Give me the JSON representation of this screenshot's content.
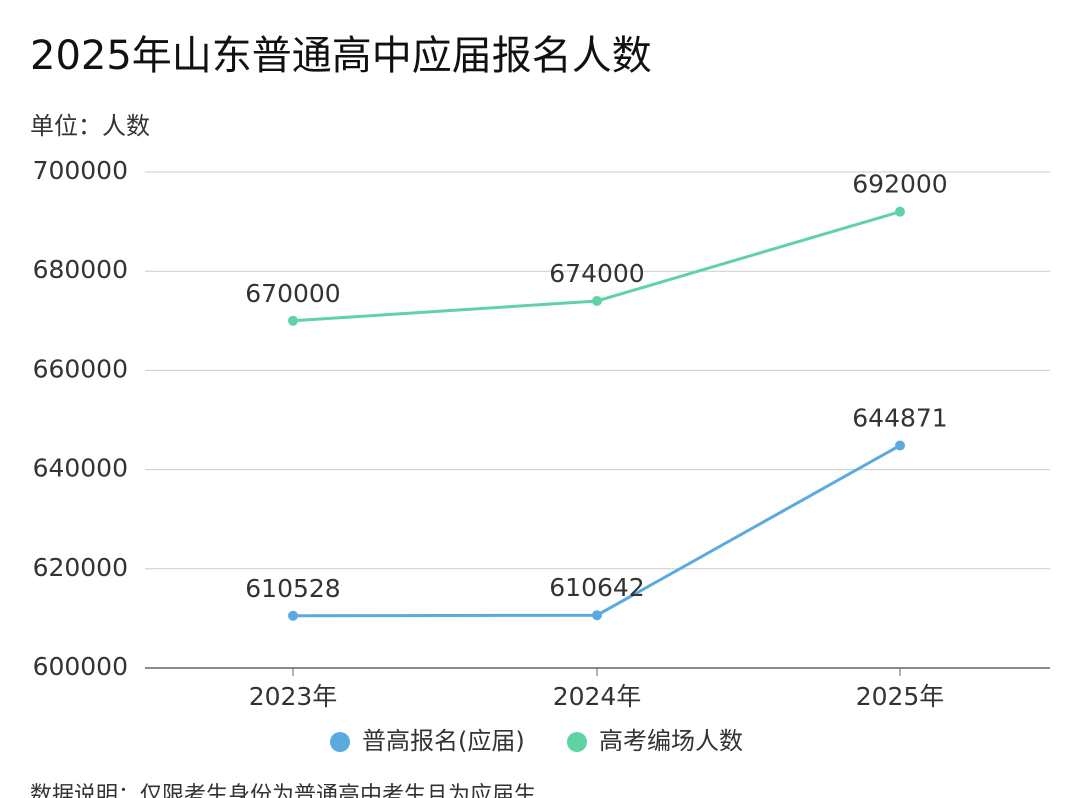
{
  "chart_data": {
    "type": "line",
    "title": "2025年山东普通高中应届报名人数",
    "unit_label": "单位：人数",
    "note": "数据说明：仅限考生身份为普通高中考生且为应届生",
    "categories": [
      "2023年",
      "2024年",
      "2025年"
    ],
    "series": [
      {
        "name": "普高报名(应届)",
        "color": "#5aaae0",
        "values": [
          610528,
          610642,
          644871
        ]
      },
      {
        "name": "高考编场人数",
        "color": "#5fd3a6",
        "values": [
          670000,
          674000,
          692000
        ]
      }
    ],
    "ylim": [
      600000,
      700000
    ],
    "yticks": [
      600000,
      620000,
      640000,
      660000,
      680000,
      700000
    ],
    "grid": true,
    "legend": "bottom"
  }
}
